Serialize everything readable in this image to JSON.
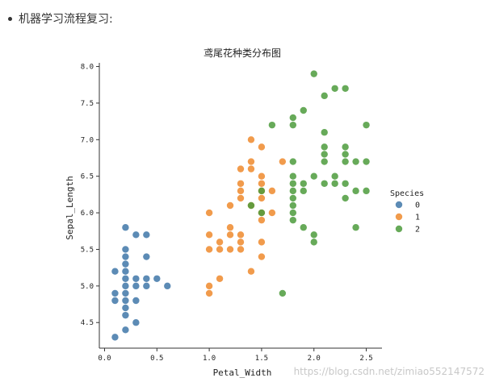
{
  "article": {
    "bullet_text": "机器学习流程复习:"
  },
  "watermark": "https://blog.csdn.net/zimiao552147572",
  "colors": {
    "species_0": "#3f77a8",
    "species_1": "#ef8a2d",
    "species_2": "#4c9b3c",
    "axis": "#333333"
  },
  "chart_data": {
    "type": "scatter",
    "title": "鸢尾花种类分布图",
    "xlabel": "Petal_Width",
    "ylabel": "Sepal_Length",
    "xlim": [
      -0.05,
      2.65
    ],
    "ylim": [
      4.15,
      8.05
    ],
    "xticks": [
      "0.0",
      "0.5",
      "1.0",
      "1.5",
      "2.0",
      "2.5"
    ],
    "yticks": [
      "4.5",
      "5.0",
      "5.5",
      "6.0",
      "6.5",
      "7.0",
      "7.5",
      "8.0"
    ],
    "grid": false,
    "legend": {
      "title": "Species",
      "position": "right"
    },
    "series": [
      {
        "name": "0",
        "color": "#3f77a8",
        "points": [
          [
            0.1,
            4.3
          ],
          [
            0.1,
            4.8
          ],
          [
            0.1,
            4.9
          ],
          [
            0.1,
            5.2
          ],
          [
            0.2,
            4.4
          ],
          [
            0.2,
            4.6
          ],
          [
            0.2,
            4.7
          ],
          [
            0.2,
            4.8
          ],
          [
            0.2,
            4.9
          ],
          [
            0.2,
            5.0
          ],
          [
            0.2,
            5.1
          ],
          [
            0.2,
            5.2
          ],
          [
            0.2,
            5.3
          ],
          [
            0.2,
            5.4
          ],
          [
            0.2,
            5.5
          ],
          [
            0.2,
            5.8
          ],
          [
            0.3,
            4.5
          ],
          [
            0.3,
            4.8
          ],
          [
            0.3,
            5.0
          ],
          [
            0.3,
            5.1
          ],
          [
            0.3,
            5.7
          ],
          [
            0.4,
            5.0
          ],
          [
            0.4,
            5.1
          ],
          [
            0.4,
            5.4
          ],
          [
            0.4,
            5.7
          ],
          [
            0.5,
            5.1
          ],
          [
            0.6,
            5.0
          ]
        ]
      },
      {
        "name": "1",
        "color": "#ef8a2d",
        "points": [
          [
            1.0,
            4.9
          ],
          [
            1.0,
            5.0
          ],
          [
            1.0,
            5.5
          ],
          [
            1.0,
            5.7
          ],
          [
            1.0,
            6.0
          ],
          [
            1.1,
            5.1
          ],
          [
            1.1,
            5.5
          ],
          [
            1.1,
            5.6
          ],
          [
            1.2,
            5.5
          ],
          [
            1.2,
            5.7
          ],
          [
            1.2,
            5.8
          ],
          [
            1.2,
            6.1
          ],
          [
            1.3,
            5.5
          ],
          [
            1.3,
            5.6
          ],
          [
            1.3,
            5.7
          ],
          [
            1.3,
            6.2
          ],
          [
            1.3,
            6.3
          ],
          [
            1.3,
            6.4
          ],
          [
            1.3,
            6.6
          ],
          [
            1.4,
            5.2
          ],
          [
            1.4,
            6.1
          ],
          [
            1.4,
            6.6
          ],
          [
            1.4,
            6.7
          ],
          [
            1.4,
            7.0
          ],
          [
            1.5,
            5.4
          ],
          [
            1.5,
            5.6
          ],
          [
            1.5,
            5.9
          ],
          [
            1.5,
            6.0
          ],
          [
            1.5,
            6.2
          ],
          [
            1.5,
            6.3
          ],
          [
            1.5,
            6.4
          ],
          [
            1.5,
            6.5
          ],
          [
            1.5,
            6.9
          ],
          [
            1.6,
            6.0
          ],
          [
            1.6,
            6.3
          ],
          [
            1.7,
            6.7
          ]
        ]
      },
      {
        "name": "2",
        "color": "#4c9b3c",
        "points": [
          [
            1.4,
            6.1
          ],
          [
            1.5,
            6.0
          ],
          [
            1.5,
            6.3
          ],
          [
            1.6,
            7.2
          ],
          [
            1.7,
            4.9
          ],
          [
            1.8,
            5.9
          ],
          [
            1.8,
            6.0
          ],
          [
            1.8,
            6.1
          ],
          [
            1.8,
            6.2
          ],
          [
            1.8,
            6.3
          ],
          [
            1.8,
            6.4
          ],
          [
            1.8,
            6.5
          ],
          [
            1.8,
            6.7
          ],
          [
            1.8,
            7.2
          ],
          [
            1.8,
            7.3
          ],
          [
            1.9,
            5.8
          ],
          [
            1.9,
            6.3
          ],
          [
            1.9,
            6.4
          ],
          [
            1.9,
            7.4
          ],
          [
            2.0,
            5.6
          ],
          [
            2.0,
            5.7
          ],
          [
            2.0,
            6.5
          ],
          [
            2.0,
            7.9
          ],
          [
            2.1,
            6.4
          ],
          [
            2.1,
            6.7
          ],
          [
            2.1,
            6.8
          ],
          [
            2.1,
            6.9
          ],
          [
            2.1,
            7.1
          ],
          [
            2.1,
            7.6
          ],
          [
            2.2,
            6.4
          ],
          [
            2.2,
            6.5
          ],
          [
            2.2,
            7.7
          ],
          [
            2.3,
            6.2
          ],
          [
            2.3,
            6.4
          ],
          [
            2.3,
            6.7
          ],
          [
            2.3,
            6.8
          ],
          [
            2.3,
            6.9
          ],
          [
            2.3,
            7.7
          ],
          [
            2.4,
            5.8
          ],
          [
            2.4,
            6.3
          ],
          [
            2.4,
            6.7
          ],
          [
            2.5,
            6.3
          ],
          [
            2.5,
            6.7
          ],
          [
            2.5,
            7.2
          ]
        ]
      }
    ]
  }
}
